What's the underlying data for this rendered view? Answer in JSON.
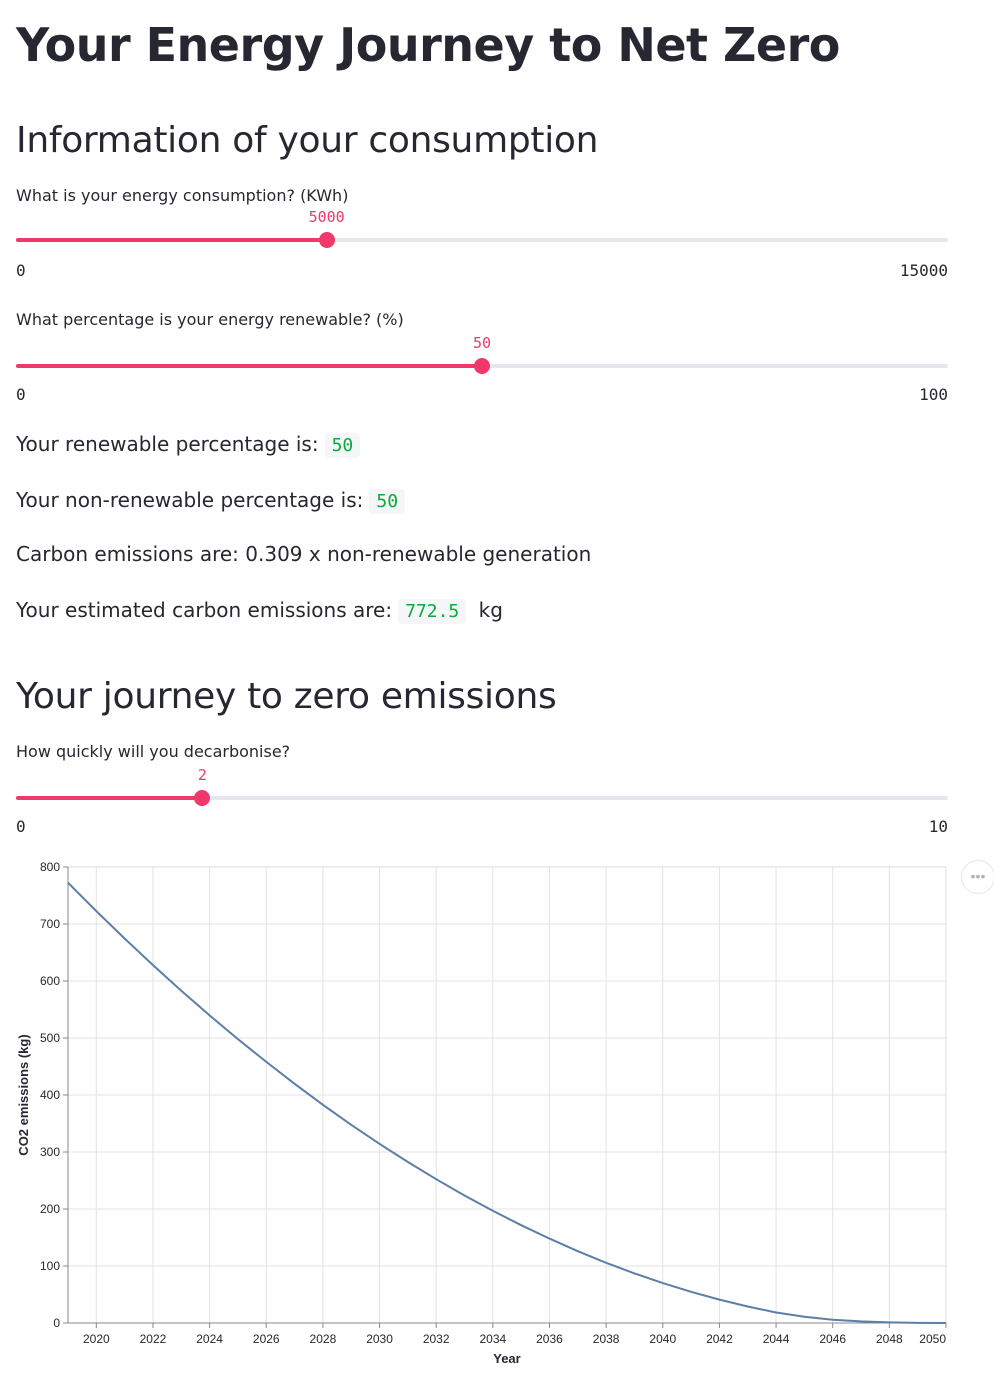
{
  "page": {
    "title": "Your Energy Journey to Net Zero"
  },
  "section1": {
    "heading": "Information of your consumption",
    "consumption_slider": {
      "label": "What is your energy consumption? (KWh)",
      "value": 5000,
      "min": 0,
      "max": 15000
    },
    "renewable_slider": {
      "label": "What percentage is your energy renewable? (%)",
      "value": 50,
      "min": 0,
      "max": 100
    },
    "renewable_line": {
      "text": "Your renewable percentage is:",
      "value": "50"
    },
    "nonrenewable_line": {
      "text": "Your non-renewable percentage is:",
      "value": "50"
    },
    "formula_line": {
      "text": "Carbon emissions are: 0.309 x non-renewable generation"
    },
    "estimate_line": {
      "text": "Your estimated carbon emissions are:",
      "value": "772.5",
      "unit": "kg"
    }
  },
  "section2": {
    "heading": "Your journey to zero emissions",
    "decarb_slider": {
      "label": "How quickly will you decarbonise?",
      "value": 2,
      "min": 0,
      "max": 10
    }
  },
  "chart_menu": {
    "icon": "ellipsis-icon",
    "glyph": "•••"
  },
  "chart_data": {
    "type": "line",
    "xlabel": "Year",
    "ylabel": "CO2 emissions (kg)",
    "xlim": [
      2019,
      2050
    ],
    "ylim": [
      0,
      800
    ],
    "x_ticks": [
      2020,
      2022,
      2024,
      2026,
      2028,
      2030,
      2032,
      2034,
      2036,
      2038,
      2040,
      2042,
      2044,
      2046,
      2048,
      2050
    ],
    "y_ticks": [
      0,
      100,
      200,
      300,
      400,
      500,
      600,
      700,
      800
    ],
    "grid": true,
    "line_color": "#5b7fa8",
    "series": [
      {
        "x": [
          2019,
          2020,
          2021,
          2022,
          2023,
          2024,
          2025,
          2026,
          2027,
          2028,
          2029,
          2030,
          2031,
          2032,
          2033,
          2034,
          2035,
          2036,
          2037,
          2038,
          2039,
          2040,
          2041,
          2042,
          2043,
          2044,
          2045,
          2046,
          2047,
          2048,
          2049,
          2050
        ],
        "y": [
          772.5,
          722.7,
          674.5,
          627.9,
          583.0,
          539.7,
          498.0,
          458.0,
          419.6,
          382.8,
          347.7,
          314.3,
          282.4,
          252.3,
          223.7,
          196.8,
          171.6,
          148.0,
          126.0,
          105.7,
          87.1,
          70.0,
          54.7,
          41.0,
          28.9,
          18.5,
          10.8,
          5.8,
          2.8,
          1.0,
          0.2,
          0.0
        ]
      }
    ]
  }
}
